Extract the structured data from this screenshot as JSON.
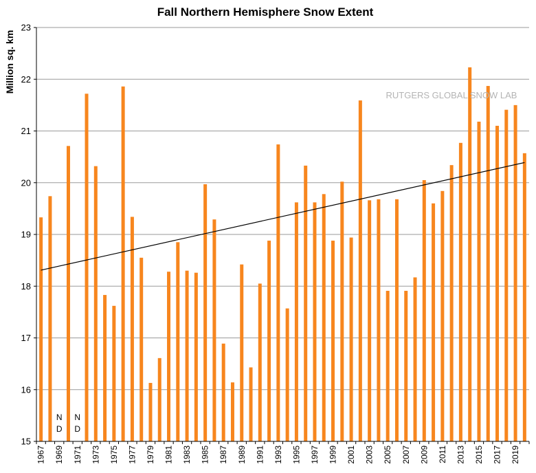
{
  "chart_data": {
    "type": "bar",
    "title": "Fall Northern Hemisphere Snow Extent",
    "ylabel": "Million sq. km",
    "xlabel": "",
    "ylim": [
      15,
      23
    ],
    "yticks": [
      15,
      16,
      17,
      18,
      19,
      20,
      21,
      22,
      23
    ],
    "grid": true,
    "bar_color": "#f7861e",
    "trend_color": "#000000",
    "watermark": "RUTGERS GLOBAL SNOW LAB",
    "no_data_label": [
      "N",
      "D"
    ],
    "categories": [
      "1967",
      "1968",
      "1969",
      "1970",
      "1971",
      "1972",
      "1973",
      "1974",
      "1975",
      "1976",
      "1977",
      "1978",
      "1979",
      "1980",
      "1981",
      "1982",
      "1983",
      "1984",
      "1985",
      "1986",
      "1987",
      "1988",
      "1989",
      "1990",
      "1991",
      "1992",
      "1993",
      "1994",
      "1995",
      "1996",
      "1997",
      "1998",
      "1999",
      "2000",
      "2001",
      "2002",
      "2003",
      "2004",
      "2005",
      "2006",
      "2007",
      "2008",
      "2009",
      "2010",
      "2011",
      "2012",
      "2013",
      "2014",
      "2015",
      "2016",
      "2017",
      "2018",
      "2019",
      "2020"
    ],
    "tick_labels": [
      "1967",
      "",
      "1969",
      "",
      "1971",
      "",
      "1973",
      "",
      "1975",
      "",
      "1977",
      "",
      "1979",
      "",
      "1981",
      "",
      "1983",
      "",
      "1985",
      "",
      "1987",
      "",
      "1989",
      "",
      "1991",
      "",
      "1993",
      "",
      "1995",
      "",
      "1997",
      "",
      "1999",
      "",
      "2001",
      "",
      "2003",
      "",
      "2005",
      "",
      "2007",
      "",
      "2009",
      "",
      "2011",
      "",
      "2013",
      "",
      "2015",
      "",
      "2017",
      "",
      "2019",
      ""
    ],
    "values": [
      19.33,
      19.74,
      null,
      20.71,
      null,
      21.72,
      20.32,
      17.83,
      17.62,
      21.86,
      19.34,
      18.55,
      16.13,
      16.61,
      18.28,
      18.85,
      18.3,
      18.26,
      19.97,
      19.29,
      16.89,
      16.14,
      18.42,
      16.43,
      18.05,
      18.88,
      20.74,
      17.57,
      19.62,
      20.33,
      19.62,
      19.78,
      18.88,
      20.02,
      18.94,
      21.59,
      19.66,
      19.68,
      17.91,
      19.68,
      17.91,
      18.17,
      20.05,
      19.6,
      19.84,
      20.34,
      20.77,
      22.23,
      21.18,
      21.87,
      21.1,
      21.41,
      21.5,
      20.57
    ],
    "trend": {
      "start": 18.31,
      "end": 20.39
    }
  }
}
